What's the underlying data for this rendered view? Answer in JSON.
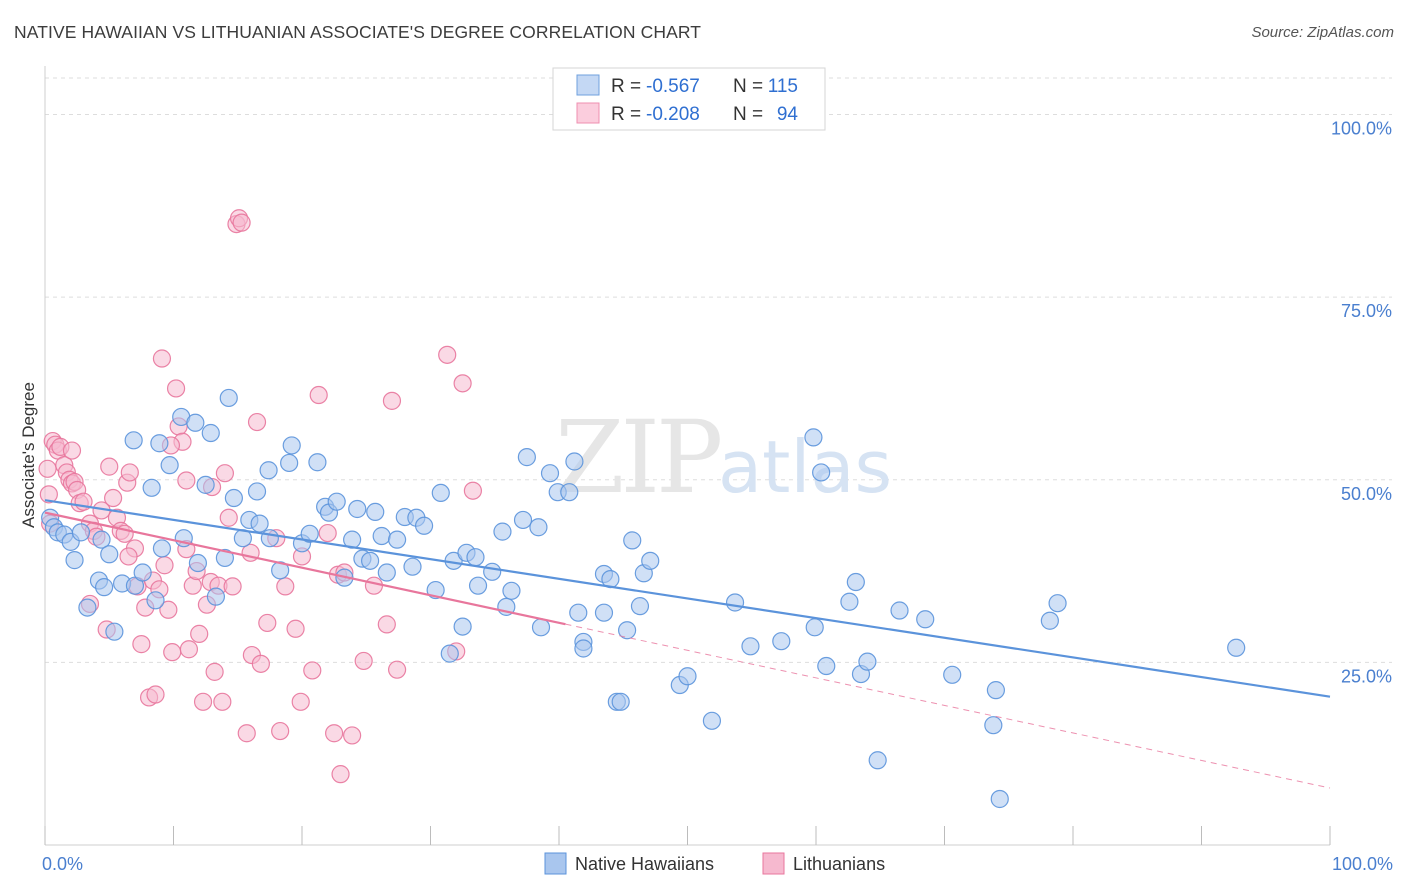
{
  "title": "NATIVE HAWAIIAN VS LITHUANIAN ASSOCIATE'S DEGREE CORRELATION CHART",
  "source": "Source: ZipAtlas.com",
  "chart_data": {
    "type": "scatter",
    "xlabel": "",
    "ylabel": "Associate's Degree",
    "xlim": [
      0,
      100
    ],
    "ylim": [
      0,
      105
    ],
    "x_tick_labels": [
      "0.0%",
      "100.0%"
    ],
    "y_ticks": [
      25,
      50,
      75,
      100
    ],
    "y_tick_labels": [
      "25.0%",
      "50.0%",
      "75.0%",
      "100.0%"
    ],
    "grid": "horizontal dashed",
    "watermark": {
      "zip": "ZIP",
      "atlas": "atlas"
    },
    "legend_top": [
      {
        "label_r": "R =",
        "r": "-0.567",
        "label_n": "N =",
        "n": "115",
        "color": "#6fa0de"
      },
      {
        "label_r": "R =",
        "r": "-0.208",
        "label_n": "N =",
        "n": "94",
        "color": "#ef8fb0"
      }
    ],
    "series": [
      {
        "name": "Native Hawaiians",
        "color": "#5b93db",
        "fill": "#a9c6ee",
        "trend": {
          "x0": 0,
          "y0": 47.2,
          "x1": 100,
          "y1": 20.3,
          "solid_to": 100
        },
        "points": [
          [
            0.4,
            44.8
          ],
          [
            0.7,
            43.5
          ],
          [
            1.0,
            42.8
          ],
          [
            1.5,
            42.5
          ],
          [
            2.0,
            41.5
          ],
          [
            2.3,
            39.0
          ],
          [
            2.8,
            42.8
          ],
          [
            3.3,
            32.5
          ],
          [
            4.2,
            36.2
          ],
          [
            4.4,
            41.8
          ],
          [
            4.6,
            35.3
          ],
          [
            5.0,
            39.8
          ],
          [
            5.4,
            29.2
          ],
          [
            6.0,
            35.8
          ],
          [
            6.9,
            55.4
          ],
          [
            7.0,
            35.5
          ],
          [
            7.6,
            37.3
          ],
          [
            8.3,
            48.9
          ],
          [
            8.6,
            33.5
          ],
          [
            9.1,
            40.6
          ],
          [
            9.7,
            52.0
          ],
          [
            10.6,
            58.6
          ],
          [
            10.8,
            42.0
          ],
          [
            11.7,
            57.8
          ],
          [
            11.9,
            38.6
          ],
          [
            12.5,
            49.3
          ],
          [
            12.9,
            56.4
          ],
          [
            13.3,
            34.0
          ],
          [
            14.0,
            39.3
          ],
          [
            14.3,
            61.2
          ],
          [
            14.7,
            47.5
          ],
          [
            15.4,
            42.0
          ],
          [
            15.9,
            44.5
          ],
          [
            16.5,
            48.4
          ],
          [
            16.7,
            44.0
          ],
          [
            17.4,
            51.3
          ],
          [
            17.5,
            42.0
          ],
          [
            18.3,
            37.6
          ],
          [
            19.0,
            52.3
          ],
          [
            19.2,
            54.7
          ],
          [
            20.0,
            41.3
          ],
          [
            20.6,
            42.6
          ],
          [
            21.2,
            52.4
          ],
          [
            21.8,
            46.3
          ],
          [
            22.1,
            45.5
          ],
          [
            22.7,
            47.0
          ],
          [
            23.3,
            36.6
          ],
          [
            23.9,
            41.8
          ],
          [
            24.3,
            46.0
          ],
          [
            24.7,
            39.2
          ],
          [
            25.3,
            38.9
          ],
          [
            25.7,
            45.6
          ],
          [
            26.2,
            42.3
          ],
          [
            26.6,
            37.3
          ],
          [
            27.4,
            41.8
          ],
          [
            28.0,
            44.9
          ],
          [
            28.6,
            38.1
          ],
          [
            28.9,
            44.8
          ],
          [
            29.5,
            43.7
          ],
          [
            30.4,
            34.9
          ],
          [
            30.8,
            48.2
          ],
          [
            31.5,
            26.2
          ],
          [
            31.8,
            38.9
          ],
          [
            32.5,
            29.9
          ],
          [
            32.8,
            40.0
          ],
          [
            33.5,
            39.4
          ],
          [
            33.7,
            35.5
          ],
          [
            34.8,
            37.4
          ],
          [
            35.6,
            42.9
          ],
          [
            35.9,
            32.6
          ],
          [
            36.3,
            34.8
          ],
          [
            37.2,
            44.5
          ],
          [
            37.5,
            53.1
          ],
          [
            38.4,
            43.5
          ],
          [
            38.6,
            29.8
          ],
          [
            39.3,
            50.9
          ],
          [
            39.9,
            48.3
          ],
          [
            40.8,
            48.3
          ],
          [
            41.2,
            52.5
          ],
          [
            41.5,
            31.8
          ],
          [
            41.9,
            27.8
          ],
          [
            41.9,
            26.9
          ],
          [
            43.5,
            31.8
          ],
          [
            43.5,
            37.1
          ],
          [
            44.0,
            36.4
          ],
          [
            44.5,
            19.6
          ],
          [
            44.8,
            19.6
          ],
          [
            45.3,
            29.4
          ],
          [
            45.7,
            41.7
          ],
          [
            46.3,
            32.7
          ],
          [
            46.6,
            37.2
          ],
          [
            47.1,
            38.9
          ],
          [
            49.4,
            21.9
          ],
          [
            50.0,
            23.1
          ],
          [
            51.9,
            17.0
          ],
          [
            53.7,
            33.2
          ],
          [
            54.9,
            27.2
          ],
          [
            57.3,
            27.9
          ],
          [
            59.9,
            29.8
          ],
          [
            59.8,
            55.8
          ],
          [
            60.4,
            51.0
          ],
          [
            60.8,
            24.5
          ],
          [
            62.6,
            33.3
          ],
          [
            63.1,
            36.0
          ],
          [
            63.5,
            23.4
          ],
          [
            64.0,
            25.1
          ],
          [
            66.5,
            32.1
          ],
          [
            68.5,
            30.9
          ],
          [
            70.6,
            23.3
          ],
          [
            73.8,
            16.4
          ],
          [
            74.0,
            21.2
          ],
          [
            74.3,
            6.3
          ],
          [
            78.2,
            30.7
          ],
          [
            78.8,
            33.1
          ],
          [
            92.7,
            27.0
          ],
          [
            64.8,
            11.6
          ],
          [
            8.9,
            55.0
          ]
        ]
      },
      {
        "name": "Lithuanians",
        "color": "#e8769c",
        "fill": "#f6b9cf",
        "trend": {
          "x0": 0,
          "y0": 45.5,
          "x1": 100,
          "y1": 7.8,
          "solid_to": 40.5
        },
        "points": [
          [
            0.2,
            51.5
          ],
          [
            0.3,
            48.0
          ],
          [
            0.4,
            44.0
          ],
          [
            0.6,
            55.3
          ],
          [
            0.8,
            54.8
          ],
          [
            1.0,
            54.0
          ],
          [
            1.2,
            54.5
          ],
          [
            1.5,
            52.0
          ],
          [
            1.7,
            51.0
          ],
          [
            1.9,
            50.0
          ],
          [
            2.1,
            49.5
          ],
          [
            2.3,
            49.7
          ],
          [
            2.5,
            48.6
          ],
          [
            2.7,
            46.8
          ],
          [
            3.0,
            47.0
          ],
          [
            3.5,
            44.0
          ],
          [
            3.8,
            43.0
          ],
          [
            4.0,
            42.2
          ],
          [
            4.4,
            45.8
          ],
          [
            4.8,
            29.5
          ],
          [
            5.0,
            51.8
          ],
          [
            5.3,
            47.5
          ],
          [
            5.6,
            44.8
          ],
          [
            5.9,
            43.0
          ],
          [
            6.2,
            42.6
          ],
          [
            6.4,
            49.6
          ],
          [
            6.6,
            51.0
          ],
          [
            7.0,
            40.6
          ],
          [
            7.2,
            35.4
          ],
          [
            7.5,
            27.5
          ],
          [
            7.8,
            32.5
          ],
          [
            8.1,
            20.2
          ],
          [
            8.4,
            36.2
          ],
          [
            8.6,
            20.6
          ],
          [
            8.9,
            35.0
          ],
          [
            9.1,
            66.6
          ],
          [
            9.3,
            38.3
          ],
          [
            9.6,
            32.2
          ],
          [
            9.9,
            26.4
          ],
          [
            10.2,
            62.5
          ],
          [
            10.4,
            57.3
          ],
          [
            10.7,
            55.2
          ],
          [
            11.0,
            49.9
          ],
          [
            11.2,
            26.8
          ],
          [
            11.5,
            35.5
          ],
          [
            11.8,
            37.5
          ],
          [
            12.0,
            28.9
          ],
          [
            12.3,
            19.6
          ],
          [
            12.6,
            32.9
          ],
          [
            12.9,
            36.0
          ],
          [
            13.2,
            23.7
          ],
          [
            13.5,
            35.5
          ],
          [
            13.8,
            19.6
          ],
          [
            14.0,
            50.9
          ],
          [
            14.3,
            44.8
          ],
          [
            14.6,
            35.4
          ],
          [
            14.9,
            85.0
          ],
          [
            15.1,
            85.8
          ],
          [
            15.3,
            85.2
          ],
          [
            15.7,
            15.3
          ],
          [
            16.1,
            26.0
          ],
          [
            16.5,
            57.9
          ],
          [
            16.8,
            24.8
          ],
          [
            17.3,
            30.4
          ],
          [
            18.3,
            15.6
          ],
          [
            18.7,
            35.4
          ],
          [
            19.5,
            29.6
          ],
          [
            19.9,
            19.6
          ],
          [
            20.8,
            23.9
          ],
          [
            21.3,
            61.6
          ],
          [
            22.0,
            42.7
          ],
          [
            22.5,
            15.3
          ],
          [
            22.8,
            37.0
          ],
          [
            23.0,
            9.7
          ],
          [
            23.3,
            37.3
          ],
          [
            23.9,
            15.0
          ],
          [
            24.8,
            25.2
          ],
          [
            25.6,
            35.5
          ],
          [
            26.6,
            30.2
          ],
          [
            27.0,
            60.8
          ],
          [
            27.4,
            24.0
          ],
          [
            31.3,
            67.1
          ],
          [
            32.0,
            26.5
          ],
          [
            32.5,
            63.2
          ],
          [
            33.3,
            48.5
          ],
          [
            3.5,
            33.0
          ],
          [
            2.1,
            54.0
          ],
          [
            6.5,
            39.5
          ],
          [
            9.8,
            54.7
          ],
          [
            13.0,
            49.0
          ],
          [
            16.0,
            40.0
          ],
          [
            18.0,
            42.0
          ],
          [
            20.0,
            39.5
          ],
          [
            11.0,
            40.5
          ]
        ]
      }
    ]
  },
  "bottom_legend": [
    {
      "label": "Native Hawaiians",
      "color": "#a9c6ee",
      "stroke": "#5b93db"
    },
    {
      "label": "Lithuanians",
      "color": "#f6b9cf",
      "stroke": "#e8769c"
    }
  ]
}
